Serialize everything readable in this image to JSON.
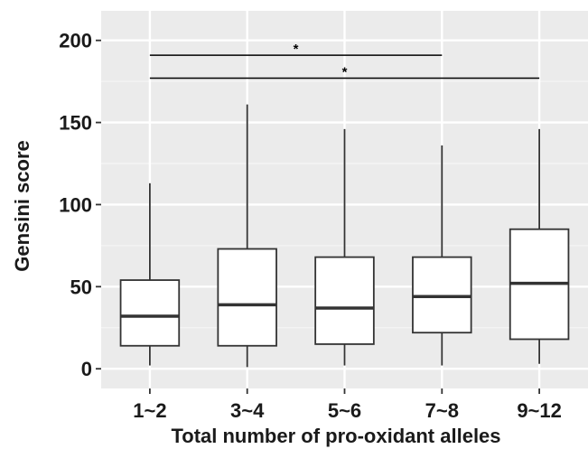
{
  "chart_data": {
    "type": "boxplot",
    "xlabel": "Total number of pro-oxidant alleles",
    "ylabel": "Gensini score",
    "categories": [
      "1~2",
      "3~4",
      "5~6",
      "7~8",
      "9~12"
    ],
    "boxes": [
      {
        "min": 2,
        "q1": 14,
        "median": 32,
        "q3": 54,
        "max": 113
      },
      {
        "min": 1,
        "q1": 14,
        "median": 39,
        "q3": 73,
        "max": 161
      },
      {
        "min": 2,
        "q1": 15,
        "median": 37,
        "q3": 68,
        "max": 146
      },
      {
        "min": 2,
        "q1": 22,
        "median": 44,
        "q3": 68,
        "max": 136
      },
      {
        "min": 3,
        "q1": 18,
        "median": 52,
        "q3": 85,
        "max": 146
      }
    ],
    "ylim": [
      -12,
      218
    ],
    "yticks": [
      0,
      50,
      100,
      150,
      200
    ],
    "grid": true,
    "significance": [
      {
        "from": "1~2",
        "to": "7~8",
        "y": 191,
        "label": "*"
      },
      {
        "from": "1~2",
        "to": "9~12",
        "y": 177,
        "label": "*"
      }
    ],
    "colors": {
      "panel": "#ebebeb",
      "grid_major": "#ffffff",
      "grid_minor": "#f5f5f5",
      "box_fill": "#ffffff",
      "box_stroke": "#333333"
    }
  }
}
